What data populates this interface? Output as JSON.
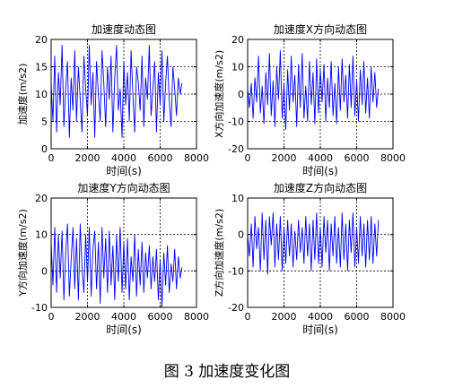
{
  "caption": "图 3  加速度变化图",
  "chart_data": [
    {
      "type": "line",
      "title": "加速度动态图",
      "xlabel": "时间(s)",
      "ylabel": "加速度(m/s2)",
      "xlim": [
        0,
        8000
      ],
      "ylim": [
        0,
        20
      ],
      "xticks": [
        0,
        2000,
        4000,
        6000,
        8000
      ],
      "yticks": [
        0,
        5,
        10,
        15,
        20
      ],
      "grid": "dashed",
      "color": "#0000ff",
      "series": [
        {
          "x": [
            0,
            100,
            200,
            300,
            400,
            500,
            600,
            700,
            800,
            900,
            1000,
            1100,
            1200,
            1300,
            1400,
            1500,
            1600,
            1700,
            1800,
            1900,
            2000,
            2100,
            2200,
            2300,
            2400,
            2500,
            2600,
            2700,
            2800,
            2900,
            3000,
            3100,
            3200,
            3300,
            3400,
            3500,
            3600,
            3700,
            3800,
            3900,
            4000,
            4100,
            4200,
            4300,
            4400,
            4500,
            4600,
            4700,
            4800,
            4900,
            5000,
            5100,
            5200,
            5300,
            5400,
            5500,
            5600,
            5700,
            5800,
            5900,
            6000,
            6100,
            6200,
            6300,
            6400,
            6500,
            6600,
            6700,
            6800,
            6900,
            7000,
            7100,
            7200
          ],
          "values": [
            12,
            5,
            17,
            3,
            14,
            8,
            19,
            4,
            11,
            16,
            2,
            13,
            7,
            18,
            5,
            15,
            9,
            3,
            17,
            11,
            6,
            19,
            8,
            14,
            2,
            16,
            10,
            5,
            18,
            12,
            4,
            15,
            9,
            17,
            3,
            13,
            19,
            7,
            11,
            2,
            16,
            8,
            14,
            5,
            18,
            10,
            3,
            15,
            12,
            7,
            17,
            4,
            13,
            9,
            19,
            6,
            11,
            16,
            3,
            14,
            8,
            18,
            5,
            12,
            17,
            9,
            4,
            15,
            11,
            6,
            13,
            10,
            12
          ]
        }
      ]
    },
    {
      "type": "line",
      "title": "加速度X方向动态图",
      "xlabel": "时间(s)",
      "ylabel": "X方向加速度(m/s2)",
      "xlim": [
        0,
        8000
      ],
      "ylim": [
        -20,
        20
      ],
      "xticks": [
        0,
        2000,
        4000,
        6000,
        8000
      ],
      "yticks": [
        -20,
        -10,
        0,
        10,
        20
      ],
      "grid": "dashed",
      "color": "#0000ff",
      "series": [
        {
          "x": [
            0,
            100,
            200,
            300,
            400,
            500,
            600,
            700,
            800,
            900,
            1000,
            1100,
            1200,
            1300,
            1400,
            1500,
            1600,
            1700,
            1800,
            1900,
            2000,
            2100,
            2200,
            2300,
            2400,
            2500,
            2600,
            2700,
            2800,
            2900,
            3000,
            3100,
            3200,
            3300,
            3400,
            3500,
            3600,
            3700,
            3800,
            3900,
            4000,
            4100,
            4200,
            4300,
            4400,
            4500,
            4600,
            4700,
            4800,
            4900,
            5000,
            5100,
            5200,
            5300,
            5400,
            5500,
            5600,
            5700,
            5800,
            5900,
            6000,
            6100,
            6200,
            6300,
            6400,
            6500,
            6600,
            6700,
            6800,
            6900,
            7000,
            7100,
            7200
          ],
          "values": [
            2,
            -5,
            4,
            -9,
            6,
            -3,
            14,
            -7,
            3,
            -11,
            8,
            -4,
            15,
            -8,
            5,
            -12,
            10,
            -2,
            16,
            -9,
            4,
            -13,
            9,
            -6,
            14,
            -3,
            7,
            -12,
            11,
            -5,
            15,
            -9,
            3,
            -10,
            12,
            -4,
            8,
            -11,
            13,
            -7,
            9,
            -3,
            11,
            -10,
            6,
            -5,
            12,
            -8,
            4,
            -11,
            10,
            -6,
            13,
            -3,
            7,
            -9,
            11,
            -5,
            14,
            -8,
            5,
            -10,
            9,
            -4,
            12,
            -7,
            6,
            -9,
            10,
            -3,
            8,
            -5,
            2
          ]
        }
      ]
    },
    {
      "type": "line",
      "title": "加速度Y方向动态图",
      "xlabel": "时间(s)",
      "ylabel": "Y方向加速度(m/s2)",
      "xlim": [
        0,
        8000
      ],
      "ylim": [
        -10,
        20
      ],
      "xticks": [
        0,
        2000,
        4000,
        6000,
        8000
      ],
      "yticks": [
        -10,
        0,
        10,
        20
      ],
      "grid": "dashed",
      "color": "#0000ff",
      "series": [
        {
          "x": [
            0,
            100,
            200,
            300,
            400,
            500,
            600,
            700,
            800,
            900,
            1000,
            1100,
            1200,
            1300,
            1400,
            1500,
            1600,
            1700,
            1800,
            1900,
            2000,
            2100,
            2200,
            2300,
            2400,
            2500,
            2600,
            2700,
            2800,
            2900,
            3000,
            3100,
            3200,
            3300,
            3400,
            3500,
            3600,
            3700,
            3800,
            3900,
            4000,
            4100,
            4200,
            4300,
            4400,
            4500,
            4600,
            4700,
            4800,
            4900,
            5000,
            5100,
            5200,
            5300,
            5400,
            5500,
            5600,
            5700,
            5800,
            5900,
            6000,
            6100,
            6200,
            6300,
            6400,
            6500,
            6600,
            6700,
            6800,
            6900,
            7000,
            7100,
            7200
          ],
          "values": [
            8,
            -4,
            12,
            -6,
            10,
            -2,
            11,
            -8,
            5,
            13,
            -7,
            3,
            12,
            -5,
            9,
            -8,
            13,
            1,
            -6,
            10,
            -3,
            12,
            -7,
            6,
            11,
            -5,
            8,
            -9,
            12,
            -2,
            9,
            -6,
            11,
            -4,
            7,
            -8,
            10,
            -3,
            12,
            -6,
            8,
            -5,
            9,
            -8,
            4,
            -3,
            10,
            -7,
            6,
            -4,
            8,
            -6,
            5,
            -2,
            7,
            -5,
            4,
            -3,
            6,
            -8,
            3,
            -10,
            5,
            -4,
            7,
            -6,
            2,
            -3,
            6,
            -5,
            4,
            -2,
            1
          ]
        }
      ]
    },
    {
      "type": "line",
      "title": "加速度Z方向动态图",
      "xlabel": "时间(s)",
      "ylabel": "Z方向加速度(m/s2)",
      "xlim": [
        0,
        8000
      ],
      "ylim": [
        -20,
        10
      ],
      "xticks": [
        0,
        2000,
        4000,
        6000,
        8000
      ],
      "yticks": [
        -20,
        -10,
        0,
        10
      ],
      "grid": "dashed",
      "color": "#0000ff",
      "series": [
        {
          "x": [
            0,
            100,
            200,
            300,
            400,
            500,
            600,
            700,
            800,
            900,
            1000,
            1100,
            1200,
            1300,
            1400,
            1500,
            1600,
            1700,
            1800,
            1900,
            2000,
            2100,
            2200,
            2300,
            2400,
            2500,
            2600,
            2700,
            2800,
            2900,
            3000,
            3100,
            3200,
            3300,
            3400,
            3500,
            3600,
            3700,
            3800,
            3900,
            4000,
            4100,
            4200,
            4300,
            4400,
            4500,
            4600,
            4700,
            4800,
            4900,
            5000,
            5100,
            5200,
            5300,
            5400,
            5500,
            5600,
            5700,
            5800,
            5900,
            6000,
            6100,
            6200,
            6300,
            6400,
            6500,
            6600,
            6700,
            6800,
            6900,
            7000,
            7100,
            7200
          ],
          "values": [
            0,
            -6,
            3,
            -9,
            5,
            -4,
            2,
            -10,
            6,
            -7,
            4,
            -11,
            5,
            -3,
            6,
            -9,
            3,
            -7,
            5,
            -10,
            2,
            -8,
            4,
            -6,
            3,
            -9,
            1,
            -7,
            4,
            -5,
            2,
            -8,
            5,
            -6,
            3,
            -10,
            4,
            -7,
            6,
            -8,
            2,
            -9,
            5,
            -5,
            4,
            -10,
            3,
            -6,
            5,
            -8,
            2,
            -9,
            6,
            -7,
            3,
            -10,
            4,
            -5,
            6,
            -9,
            2,
            -8,
            5,
            -6,
            3,
            -9,
            4,
            -7,
            5,
            -8,
            3,
            -6,
            4
          ]
        }
      ]
    }
  ]
}
